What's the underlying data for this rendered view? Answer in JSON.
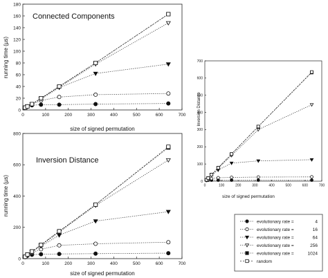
{
  "chart_data": [
    {
      "type": "line",
      "title": "Connected Components",
      "xlabel": "size of signed permutation",
      "ylabel": "running time (µs)",
      "xlim": [
        0,
        700
      ],
      "ylim": [
        0,
        180
      ],
      "x_ticks": [
        "0",
        "100",
        "200",
        "300",
        "400",
        "500",
        "600",
        "700"
      ],
      "y_ticks": [
        "0",
        "20",
        "40",
        "60",
        "80",
        "100",
        "120",
        "140",
        "160",
        "180"
      ],
      "grid": false,
      "series": [
        {
          "name": "evolutionary rate = 4",
          "marker": "filled-circle",
          "x": [
            10,
            20,
            40,
            80,
            160,
            320,
            640
          ],
          "y": [
            4,
            6,
            8,
            9,
            9,
            10,
            11
          ]
        },
        {
          "name": "evolutionary rate = 16",
          "marker": "open-circle",
          "x": [
            10,
            20,
            40,
            80,
            160,
            320,
            640
          ],
          "y": [
            4,
            6,
            10,
            16,
            22,
            26,
            28
          ]
        },
        {
          "name": "evolutionary rate = 64",
          "marker": "filled-triangle",
          "x": [
            10,
            20,
            40,
            80,
            160,
            320,
            640
          ],
          "y": [
            4,
            6,
            10,
            19,
            38,
            62,
            78
          ]
        },
        {
          "name": "evolutionary rate = 256",
          "marker": "open-triangle",
          "x": [
            10,
            20,
            40,
            80,
            160,
            320,
            640
          ],
          "y": [
            4,
            6,
            10,
            19,
            39,
            78,
            148
          ]
        },
        {
          "name": "evolutionary rate = 1024",
          "marker": "filled-square",
          "x": [
            10,
            20,
            40,
            80,
            160,
            320,
            640
          ],
          "y": [
            4,
            6,
            10,
            20,
            40,
            80,
            163
          ]
        },
        {
          "name": "random",
          "marker": "open-square",
          "x": [
            10,
            20,
            40,
            80,
            160,
            320,
            640
          ],
          "y": [
            4,
            6,
            10,
            20,
            40,
            80,
            163
          ]
        }
      ]
    },
    {
      "type": "line",
      "title": "Inversion Distance",
      "xlabel": "size of signed permutation",
      "ylabel": "running time (µs)",
      "xlim": [
        0,
        700
      ],
      "ylim": [
        0,
        800
      ],
      "x_ticks": [
        "0",
        "100",
        "200",
        "300",
        "400",
        "500",
        "600",
        "700"
      ],
      "y_ticks": [
        "0",
        "200",
        "400",
        "600",
        "800"
      ],
      "grid": false,
      "series": [
        {
          "name": "evolutionary rate = 4",
          "marker": "filled-circle",
          "x": [
            10,
            20,
            40,
            80,
            160,
            320,
            640
          ],
          "y": [
            10,
            18,
            25,
            28,
            30,
            32,
            35
          ]
        },
        {
          "name": "evolutionary rate = 16",
          "marker": "open-circle",
          "x": [
            10,
            20,
            40,
            80,
            160,
            320,
            640
          ],
          "y": [
            12,
            22,
            38,
            60,
            85,
            95,
            105
          ]
        },
        {
          "name": "evolutionary rate = 64",
          "marker": "filled-triangle",
          "x": [
            10,
            20,
            40,
            80,
            160,
            320,
            640
          ],
          "y": [
            12,
            25,
            42,
            80,
            150,
            240,
            300
          ]
        },
        {
          "name": "evolutionary rate = 256",
          "marker": "open-triangle",
          "x": [
            10,
            20,
            40,
            80,
            160,
            320,
            640
          ],
          "y": [
            12,
            25,
            45,
            85,
            170,
            340,
            630
          ]
        },
        {
          "name": "evolutionary rate = 1024",
          "marker": "filled-square",
          "x": [
            10,
            20,
            40,
            80,
            160,
            320,
            640
          ],
          "y": [
            12,
            26,
            46,
            88,
            175,
            345,
            710
          ]
        },
        {
          "name": "random",
          "marker": "open-square",
          "x": [
            10,
            20,
            40,
            80,
            160,
            320,
            640
          ],
          "y": [
            12,
            26,
            46,
            88,
            175,
            345,
            715
          ]
        }
      ]
    },
    {
      "type": "line",
      "title": "",
      "xlabel": "size of signed permutation",
      "ylabel": "Inversion Distance",
      "xlim": [
        0,
        700
      ],
      "ylim": [
        0,
        700
      ],
      "x_ticks": [
        "0",
        "100",
        "200",
        "300",
        "400",
        "500",
        "600",
        "700"
      ],
      "y_ticks": [
        "0",
        "100",
        "200",
        "300",
        "400",
        "500",
        "600",
        "700"
      ],
      "grid": false,
      "series": [
        {
          "name": "evolutionary rate = 4",
          "marker": "filled-circle",
          "x": [
            10,
            20,
            40,
            80,
            160,
            320,
            640
          ],
          "y": [
            4,
            6,
            6,
            6,
            6,
            6,
            6
          ]
        },
        {
          "name": "evolutionary rate = 16",
          "marker": "open-circle",
          "x": [
            10,
            20,
            40,
            80,
            160,
            320,
            640
          ],
          "y": [
            6,
            10,
            15,
            20,
            22,
            24,
            25
          ]
        },
        {
          "name": "evolutionary rate = 64",
          "marker": "filled-triangle",
          "x": [
            10,
            20,
            40,
            80,
            160,
            320,
            640
          ],
          "y": [
            8,
            18,
            35,
            65,
            105,
            118,
            125
          ]
        },
        {
          "name": "evolutionary rate = 256",
          "marker": "open-triangle",
          "x": [
            10,
            20,
            40,
            80,
            160,
            320,
            640
          ],
          "y": [
            8,
            18,
            38,
            75,
            150,
            300,
            445
          ]
        },
        {
          "name": "evolutionary rate = 1024",
          "marker": "filled-square",
          "x": [
            10,
            20,
            40,
            80,
            160,
            320,
            640
          ],
          "y": [
            8,
            18,
            38,
            78,
            158,
            318,
            632
          ]
        },
        {
          "name": "random",
          "marker": "open-square",
          "x": [
            10,
            20,
            40,
            80,
            160,
            320,
            640
          ],
          "y": [
            8,
            18,
            38,
            78,
            158,
            318,
            635
          ]
        }
      ]
    }
  ],
  "legend": {
    "placement": "bottom-right",
    "entries": [
      {
        "label": "evolutionary rate =",
        "value": "4",
        "marker": "filled-circle"
      },
      {
        "label": "evolutionary rate =",
        "value": "16",
        "marker": "open-circle"
      },
      {
        "label": "evolutionary rate =",
        "value": "64",
        "marker": "filled-triangle"
      },
      {
        "label": "evolutionary rate =",
        "value": "256",
        "marker": "open-triangle"
      },
      {
        "label": "evolutionary rate =",
        "value": "1024",
        "marker": "filled-square"
      },
      {
        "label": "random",
        "value": "",
        "marker": "open-square"
      }
    ]
  },
  "colors": {
    "ink": "#111111",
    "line": "#333333"
  }
}
